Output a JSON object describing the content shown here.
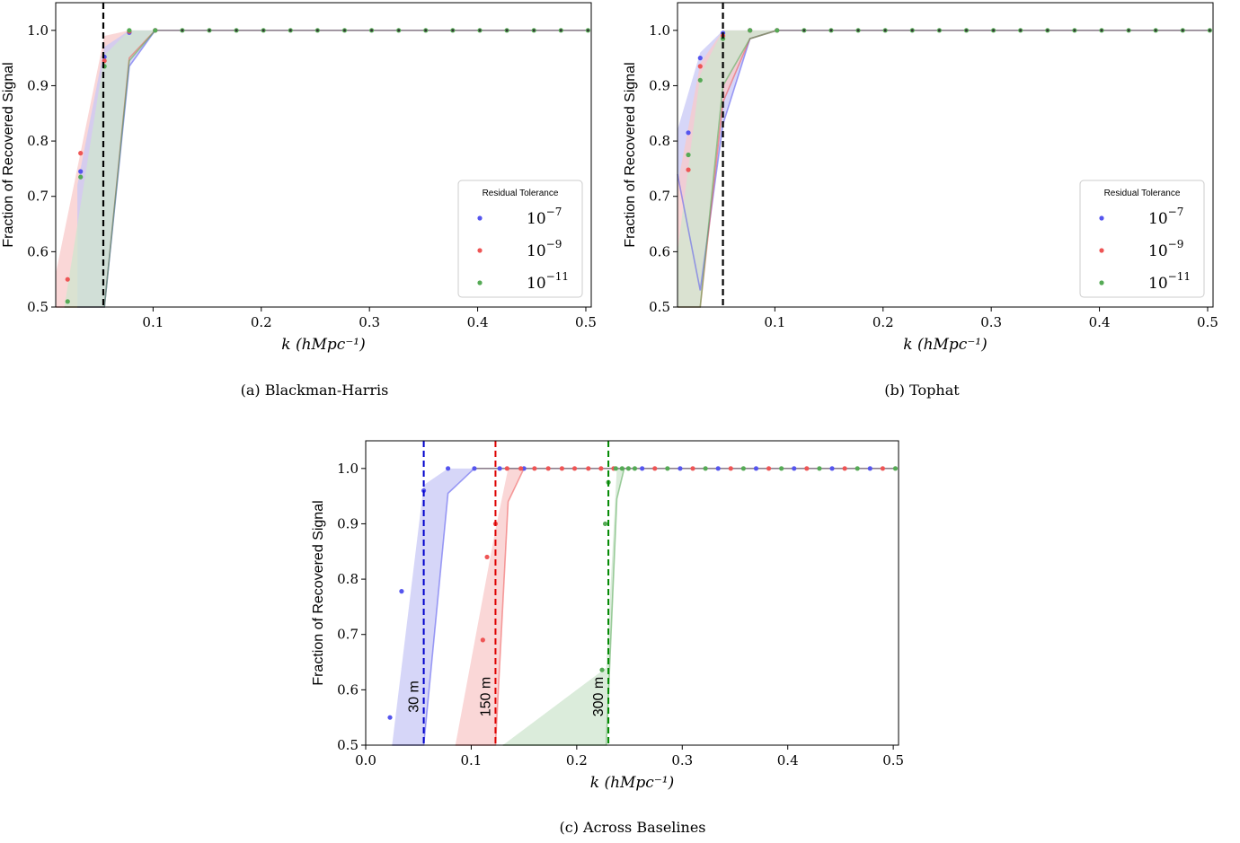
{
  "colors": {
    "blue": "#5555ee",
    "red": "#ee5555",
    "green": "#55aa55",
    "fill_blue": "#c8c8f5",
    "fill_red": "#f8caca",
    "fill_green": "#cfe6cf",
    "overlap": "#c6b6c6",
    "cutoff_black": "#000000",
    "cutoff_blue": "#0000cc",
    "cutoff_red": "#dd0000",
    "cutoff_green": "#008800"
  },
  "chart_data": [
    {
      "id": "a",
      "type": "scatter",
      "caption": "(a)  Blackman-Harris",
      "xlabel": "k (hMpc⁻¹)",
      "ylabel": "Fraction of Recovered Signal",
      "xlim": [
        0.01,
        0.505
      ],
      "ylim": [
        0.5,
        1.05
      ],
      "xticks": [
        "0.1",
        "0.2",
        "0.3",
        "0.4",
        "0.5"
      ],
      "yticks": [
        "0.5",
        "0.6",
        "0.7",
        "0.8",
        "0.9",
        "1.0"
      ],
      "cutoff_x": 0.054,
      "legend": {
        "title": "Residual Tolerance",
        "position": "lower-right",
        "entries": [
          {
            "base": "10",
            "exp": "−7",
            "color": "blue"
          },
          {
            "base": "10",
            "exp": "−9",
            "color": "red"
          },
          {
            "base": "10",
            "exp": "−11",
            "color": "green"
          }
        ]
      },
      "series": [
        {
          "color": "blue",
          "x": [
            0.033,
            0.055,
            0.078,
            0.102
          ],
          "y": [
            0.745,
            0.952,
            0.996,
            1.0
          ]
        },
        {
          "color": "red",
          "x": [
            0.021,
            0.033,
            0.055,
            0.078,
            0.102
          ],
          "y": [
            0.55,
            0.778,
            0.945,
            0.998,
            1.0
          ]
        },
        {
          "color": "green",
          "x": [
            0.021,
            0.033,
            0.055,
            0.078,
            0.102
          ],
          "y": [
            0.51,
            0.735,
            0.935,
            1.0,
            1.0
          ]
        }
      ],
      "plateau_x": [
        0.127,
        0.152,
        0.177,
        0.202,
        0.227,
        0.252,
        0.277,
        0.302,
        0.327,
        0.352,
        0.377,
        0.402,
        0.427,
        0.452,
        0.477,
        0.502
      ],
      "bands": [
        {
          "color": "red",
          "x": [
            0.01,
            0.055,
            0.078,
            0.102
          ],
          "upper": [
            0.56,
            0.99,
            1.0,
            1.0
          ],
          "lower": [
            0.5,
            0.5,
            0.95,
            1.0
          ]
        },
        {
          "color": "blue",
          "x": [
            0.03,
            0.055,
            0.078,
            0.102
          ],
          "upper": [
            0.72,
            0.97,
            1.0,
            1.0
          ],
          "lower": [
            0.5,
            0.5,
            0.935,
            1.0
          ]
        },
        {
          "color": "green",
          "x": [
            0.018,
            0.055,
            0.078,
            0.102
          ],
          "upper": [
            0.5,
            0.955,
            1.0,
            1.0
          ],
          "lower": [
            0.5,
            0.5,
            0.945,
            1.0
          ]
        }
      ]
    },
    {
      "id": "b",
      "type": "scatter",
      "caption": "(b)  Tophat",
      "xlabel": "k (hMpc⁻¹)",
      "ylabel": "Fraction of Recovered Signal",
      "xlim": [
        0.01,
        0.505
      ],
      "ylim": [
        0.5,
        1.05
      ],
      "xticks": [
        "0.1",
        "0.2",
        "0.3",
        "0.4",
        "0.5"
      ],
      "yticks": [
        "0.5",
        "0.6",
        "0.7",
        "0.8",
        "0.9",
        "1.0"
      ],
      "cutoff_x": 0.052,
      "legend": {
        "title": "Residual Tolerance",
        "position": "lower-right",
        "entries": [
          {
            "base": "10",
            "exp": "−7",
            "color": "blue"
          },
          {
            "base": "10",
            "exp": "−9",
            "color": "red"
          },
          {
            "base": "10",
            "exp": "−11",
            "color": "green"
          }
        ]
      },
      "series": [
        {
          "color": "blue",
          "x": [
            0.02,
            0.031,
            0.052,
            0.077,
            0.102
          ],
          "y": [
            0.815,
            0.95,
            0.995,
            1.0,
            1.0
          ]
        },
        {
          "color": "red",
          "x": [
            0.02,
            0.031,
            0.052,
            0.077,
            0.102
          ],
          "y": [
            0.748,
            0.935,
            0.99,
            1.0,
            1.0
          ]
        },
        {
          "color": "green",
          "x": [
            0.02,
            0.031,
            0.052,
            0.077,
            0.102
          ],
          "y": [
            0.775,
            0.91,
            0.985,
            1.0,
            1.0
          ]
        }
      ],
      "plateau_x": [
        0.127,
        0.152,
        0.177,
        0.202,
        0.227,
        0.252,
        0.277,
        0.302,
        0.327,
        0.352,
        0.377,
        0.402,
        0.427,
        0.452,
        0.477,
        0.502
      ],
      "bands": [
        {
          "color": "blue",
          "x": [
            0.01,
            0.031,
            0.052,
            0.077,
            0.102
          ],
          "upper": [
            0.82,
            0.96,
            1.0,
            1.0,
            1.0
          ],
          "lower": [
            0.74,
            0.53,
            0.83,
            0.985,
            1.0
          ]
        },
        {
          "color": "red",
          "x": [
            0.01,
            0.031,
            0.052,
            0.077,
            0.102
          ],
          "upper": [
            0.72,
            0.94,
            1.0,
            1.0,
            1.0
          ],
          "lower": [
            0.5,
            0.5,
            0.87,
            0.985,
            1.0
          ]
        },
        {
          "color": "green",
          "x": [
            0.01,
            0.031,
            0.052,
            0.077,
            0.102
          ],
          "upper": [
            0.6,
            0.92,
            1.0,
            1.0,
            1.0
          ],
          "lower": [
            0.5,
            0.5,
            0.9,
            0.985,
            1.0
          ]
        }
      ]
    },
    {
      "id": "c",
      "type": "scatter",
      "caption": "(c)  Across Baselines",
      "xlabel": "k (hMpc⁻¹)",
      "ylabel": "Fraction of Recovered Signal",
      "xlim": [
        0.0,
        0.505
      ],
      "ylim": [
        0.5,
        1.05
      ],
      "xticks": [
        "0.0",
        "0.1",
        "0.2",
        "0.3",
        "0.4",
        "0.5"
      ],
      "yticks": [
        "0.5",
        "0.6",
        "0.7",
        "0.8",
        "0.9",
        "1.0"
      ],
      "baselines": [
        {
          "label": "30 m",
          "cutoff_x": 0.055,
          "color": "blue"
        },
        {
          "label": "150 m",
          "cutoff_x": 0.123,
          "color": "red"
        },
        {
          "label": "300 m",
          "cutoff_x": 0.23,
          "color": "green"
        }
      ],
      "series": [
        {
          "color": "blue",
          "x": [
            0.023,
            0.034,
            0.055,
            0.078,
            0.103,
            0.127,
            0.15
          ],
          "y": [
            0.55,
            0.778,
            0.96,
            1.0,
            1.0,
            1.0,
            1.0
          ]
        },
        {
          "color": "red",
          "x": [
            0.111,
            0.115,
            0.123,
            0.134,
            0.147,
            0.16,
            0.173,
            0.186,
            0.198,
            0.211,
            0.223,
            0.235
          ],
          "y": [
            0.69,
            0.84,
            0.9,
            1.0,
            1.0,
            1.0,
            1.0,
            1.0,
            1.0,
            1.0,
            1.0,
            1.0
          ]
        },
        {
          "color": "green",
          "x": [
            0.224,
            0.227,
            0.23,
            0.237,
            0.243,
            0.249,
            0.255
          ],
          "y": [
            0.636,
            0.9,
            0.975,
            1.0,
            1.0,
            1.0,
            1.0
          ]
        }
      ],
      "plateau_x": [
        0.262,
        0.274,
        0.286,
        0.298,
        0.31,
        0.322,
        0.334,
        0.346,
        0.358,
        0.37,
        0.382,
        0.394,
        0.406,
        0.418,
        0.43,
        0.442,
        0.454,
        0.466,
        0.478,
        0.49,
        0.502
      ],
      "bands": [
        {
          "color": "blue",
          "x": [
            0.025,
            0.055,
            0.078,
            0.103
          ],
          "upper": [
            0.5,
            0.97,
            1.0,
            1.0
          ],
          "lower": [
            0.5,
            0.5,
            0.955,
            1.0
          ]
        },
        {
          "color": "red",
          "x": [
            0.085,
            0.123,
            0.135,
            0.15
          ],
          "upper": [
            0.5,
            0.89,
            1.0,
            1.0
          ],
          "lower": [
            0.5,
            0.5,
            0.94,
            1.0
          ]
        },
        {
          "color": "green",
          "x": [
            0.13,
            0.228,
            0.238,
            0.245
          ],
          "upper": [
            0.5,
            0.64,
            1.0,
            1.0
          ],
          "lower": [
            0.5,
            0.5,
            0.945,
            1.0
          ]
        }
      ]
    }
  ]
}
